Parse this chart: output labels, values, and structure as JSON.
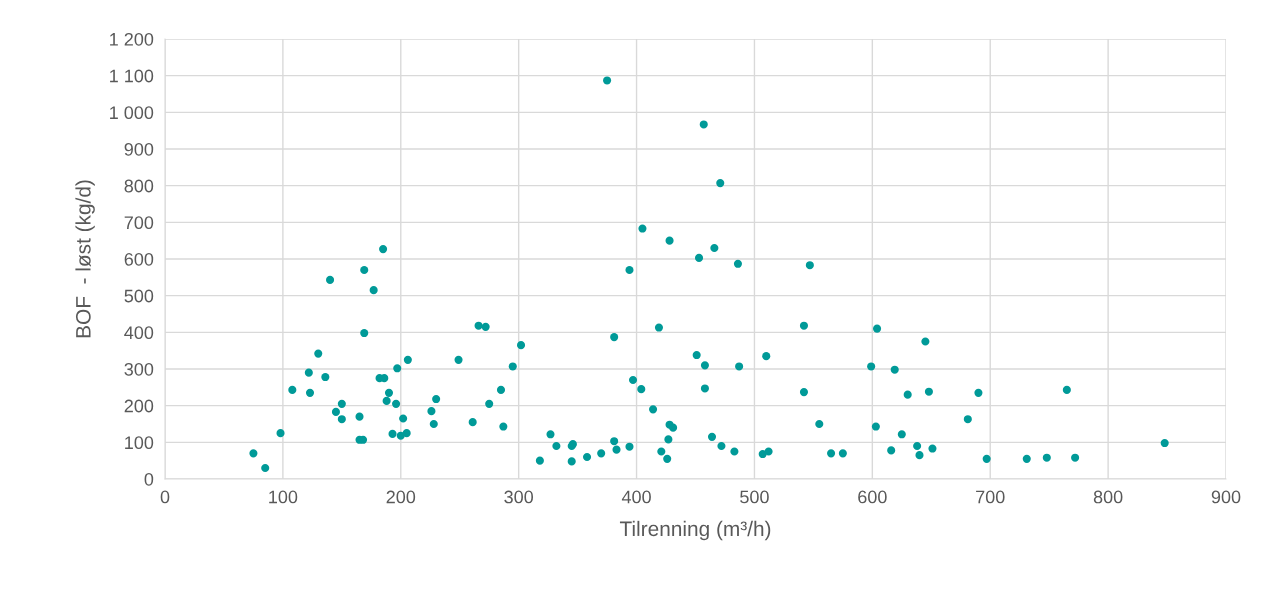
{
  "chart_data": {
    "type": "scatter",
    "xlabel": "Tilrenning (m³/h)",
    "ylabel": "BOF  - løst (kg/d)",
    "xlim": [
      0,
      900
    ],
    "xticks": [
      0,
      100,
      200,
      300,
      400,
      500,
      600,
      700,
      800,
      900
    ],
    "ylim": [
      0,
      1200
    ],
    "yticks": [
      0,
      100,
      200,
      300,
      400,
      500,
      600,
      700,
      800,
      900,
      {
        "value": 1000,
        "label": "1 000"
      },
      {
        "value": 1100,
        "label": "1 100"
      },
      {
        "value": 1200,
        "label": "1 200"
      }
    ],
    "grid": true,
    "marker": "circle",
    "series": [
      {
        "color": "#009a98",
        "x": [
          75,
          85,
          98,
          108,
          122,
          123,
          130,
          136,
          140,
          145,
          150,
          150,
          165,
          165,
          168,
          169,
          169,
          177,
          182,
          186,
          185,
          188,
          190,
          193,
          196,
          197,
          200,
          202,
          205,
          206,
          226,
          228,
          230,
          249,
          261,
          266,
          272,
          275,
          285,
          287,
          295,
          302,
          318,
          327,
          332,
          345,
          345,
          346,
          358,
          370,
          375,
          381,
          381,
          383,
          394,
          394,
          397,
          404,
          405,
          414,
          419,
          421,
          426,
          427,
          428,
          428,
          431,
          453,
          451,
          457,
          458,
          458,
          464,
          466,
          471,
          472,
          483,
          486,
          487,
          507,
          510,
          512,
          542,
          542,
          547,
          555,
          565,
          575,
          599,
          603,
          604,
          616,
          619,
          625,
          630,
          638,
          640,
          645,
          648,
          651,
          681,
          690,
          697,
          731,
          748,
          765,
          772,
          848
        ],
        "values": [
          70,
          30,
          125,
          243,
          290,
          235,
          342,
          278,
          543,
          183,
          205,
          163,
          170,
          107,
          107,
          570,
          398,
          515,
          275,
          275,
          627,
          213,
          235,
          123,
          205,
          302,
          118,
          165,
          125,
          325,
          185,
          150,
          218,
          325,
          155,
          418,
          415,
          205,
          243,
          143,
          307,
          365,
          50,
          122,
          90,
          48,
          90,
          95,
          60,
          70,
          1087,
          103,
          387,
          80,
          88,
          570,
          270,
          245,
          683,
          190,
          413,
          75,
          55,
          108,
          650,
          148,
          140,
          603,
          338,
          967,
          310,
          247,
          115,
          630,
          807,
          90,
          75,
          587,
          307,
          68,
          335,
          75,
          418,
          237,
          583,
          150,
          70,
          70,
          307,
          143,
          410,
          78,
          298,
          122,
          230,
          90,
          65,
          375,
          238,
          83,
          163,
          235,
          55,
          55,
          58,
          243,
          58,
          98
        ]
      }
    ]
  }
}
